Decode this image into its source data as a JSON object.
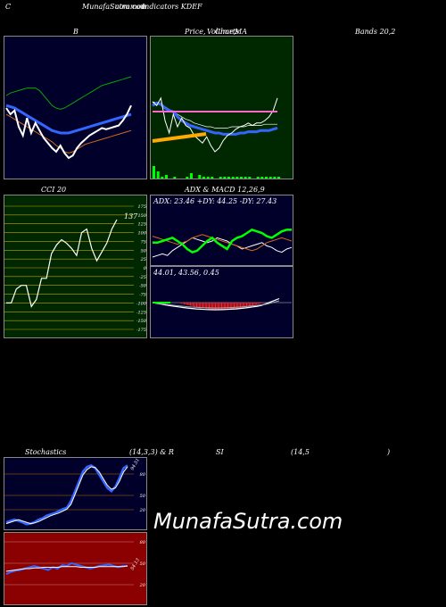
{
  "header": {
    "left": "C",
    "site": "MunafaSutra.com",
    "site_overlap": "common",
    "title": "Indicators KDEF"
  },
  "top_labels": {
    "b": "B",
    "price": "Price,",
    "volume": "Volume,",
    "overlap": "Charts",
    "ma": "MA",
    "bands": "Bands 20,2"
  },
  "cci": {
    "label": "CCI 20",
    "value_label": "137",
    "ticks": [
      "175",
      "150",
      "125",
      "100",
      "75",
      "50",
      "25",
      "0",
      "-25",
      "-50",
      "-75",
      "-100",
      "-125",
      "-150",
      "-175"
    ]
  },
  "adx": {
    "label": "ADX  & MACD 12,26,9",
    "values": "ADX: 23.46  +DY: 44.25 -DY: 27.43",
    "macd_values": "44.01,  43.56,  0.45"
  },
  "stoch": {
    "label": "Stochastics",
    "params": "(14,3,3) & R",
    "rsi": "SI",
    "rsi_params": "(14,5",
    "close_paren": ")",
    "stoch_value": "94.51",
    "rsi_value": "54.13",
    "ticks": [
      "80",
      "50",
      "20"
    ],
    "rsi_ticks": [
      "80",
      "50",
      "20"
    ]
  },
  "watermark": "MunafaSutra.com",
  "colors": {
    "navy": "#00002a",
    "green_bg": "#002800",
    "red_bg": "#8b0000",
    "blue": "#3366ff",
    "green_line": "#00aa00",
    "orange": "#d2691e"
  },
  "chart_data": [
    {
      "type": "line",
      "panel": "bollinger",
      "series": [
        {
          "values": [
            60,
            62,
            63,
            64,
            65,
            66,
            66,
            66,
            64,
            60,
            56,
            52,
            50,
            49,
            50,
            52,
            54,
            56,
            58,
            60,
            62,
            64,
            66,
            68,
            69,
            70,
            71,
            72,
            73,
            74,
            75
          ]
        },
        {
          "values": [
            52,
            51,
            50,
            48,
            46,
            44,
            42,
            40,
            38,
            36,
            34,
            32,
            31,
            30,
            30,
            30,
            31,
            32,
            33,
            34,
            35,
            36,
            37,
            38,
            39,
            40,
            41,
            42,
            43,
            44,
            45
          ]
        },
        {
          "values": [
            45,
            43,
            41,
            39,
            37,
            35,
            33,
            31,
            29,
            27,
            25,
            23,
            20,
            18,
            15,
            14,
            15,
            17,
            19,
            21,
            22,
            23,
            24,
            25,
            26,
            27,
            28,
            29,
            30,
            31,
            32
          ]
        },
        {
          "values": [
            50,
            45,
            48,
            35,
            28,
            42,
            30,
            38,
            32,
            26,
            22,
            18,
            15,
            20,
            14,
            10,
            12,
            18,
            22,
            25,
            28,
            30,
            32,
            34,
            33,
            34,
            35,
            36,
            40,
            45,
            52
          ]
        }
      ]
    },
    {
      "type": "line",
      "panel": "price_ma",
      "series": [
        {
          "values": [
            55,
            54,
            53,
            51,
            49,
            47,
            45,
            43,
            41,
            40,
            38,
            37,
            36,
            35,
            35,
            34,
            34,
            34,
            34,
            35,
            35,
            35,
            35,
            36,
            36,
            36,
            36,
            37,
            37,
            37,
            37
          ]
        },
        {
          "values": [
            52,
            54,
            53,
            50,
            48,
            47,
            43,
            40,
            38,
            36,
            35,
            34,
            33,
            32,
            31,
            30,
            30,
            29,
            29,
            29,
            29,
            30,
            30,
            31,
            31,
            31,
            32,
            32,
            32,
            33,
            34
          ]
        },
        {
          "values": [
            55,
            52,
            58,
            40,
            30,
            45,
            35,
            42,
            36,
            34,
            28,
            25,
            22,
            27,
            20,
            15,
            18,
            24,
            28,
            30,
            33,
            35,
            36,
            38,
            36,
            38,
            38,
            40,
            43,
            48,
            58
          ]
        }
      ],
      "volume": [
        7,
        4,
        1,
        2,
        0,
        1,
        0,
        0,
        1,
        3,
        0,
        2,
        1,
        1,
        1,
        0,
        1,
        1,
        1,
        1,
        1,
        1,
        1,
        1,
        0,
        1,
        1,
        1,
        1,
        1,
        1
      ]
    },
    {
      "type": "line",
      "panel": "cci",
      "ylim": [
        -175,
        175
      ],
      "values": [
        -100,
        -100,
        -60,
        -50,
        -50,
        -110,
        -90,
        -30,
        -30,
        40,
        65,
        80,
        70,
        55,
        35,
        100,
        110,
        55,
        20,
        45,
        70,
        110,
        137
      ]
    },
    {
      "type": "line",
      "panel": "adx",
      "series": [
        {
          "values": [
            10,
            12,
            14,
            12,
            18,
            22,
            26,
            30,
            34,
            32,
            30,
            28,
            30,
            34,
            32,
            30,
            26,
            24,
            20,
            22,
            24,
            26,
            28,
            24,
            22,
            18,
            16,
            20,
            22
          ]
        },
        {
          "values": [
            36,
            34,
            32,
            30,
            28,
            26,
            28,
            30,
            34,
            36,
            38,
            36,
            34,
            32,
            30,
            28,
            26,
            24,
            22,
            20,
            18,
            20,
            24,
            28,
            30,
            32,
            34,
            32,
            30
          ]
        },
        {
          "values": [
            28,
            28,
            30,
            32,
            34,
            30,
            26,
            20,
            16,
            18,
            24,
            30,
            34,
            28,
            24,
            20,
            30,
            34,
            36,
            40,
            44,
            42,
            40,
            36,
            34,
            38,
            42,
            44,
            44
          ]
        }
      ]
    },
    {
      "type": "line",
      "panel": "stochastics",
      "ylim": [
        0,
        100
      ],
      "series": [
        {
          "values": [
            8,
            10,
            12,
            10,
            8,
            5,
            6,
            8,
            12,
            14,
            18,
            20,
            22,
            25,
            28,
            30,
            40,
            55,
            70,
            85,
            92,
            94,
            90,
            80,
            70,
            60,
            55,
            62,
            75,
            90,
            94
          ]
        },
        {
          "values": [
            6,
            8,
            10,
            12,
            10,
            8,
            6,
            7,
            9,
            12,
            15,
            18,
            20,
            22,
            25,
            28,
            35,
            50,
            65,
            80,
            88,
            92,
            91,
            84,
            74,
            64,
            58,
            60,
            70,
            84,
            92
          ]
        }
      ]
    },
    {
      "type": "line",
      "panel": "rsi",
      "ylim": [
        0,
        100
      ],
      "series": [
        {
          "values": [
            42,
            45,
            47,
            48,
            50,
            52,
            54,
            52,
            50,
            48,
            52,
            50,
            55,
            54,
            58,
            56,
            54,
            52,
            50,
            52,
            54,
            55,
            56,
            54,
            52,
            54,
            54
          ]
        },
        {
          "values": [
            46,
            47,
            48,
            49,
            50,
            50,
            51,
            51,
            52,
            52,
            52,
            52,
            53,
            53,
            53,
            53,
            52,
            52,
            52,
            52,
            53,
            53,
            53,
            53,
            53,
            53,
            54
          ]
        }
      ]
    }
  ]
}
